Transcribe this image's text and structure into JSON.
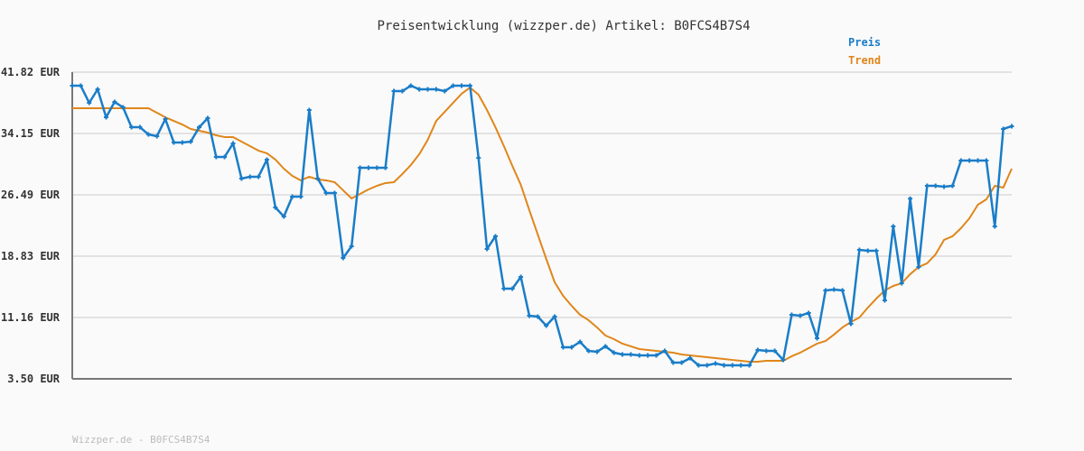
{
  "chart_data": {
    "type": "line",
    "title": "Preisentwicklung (wizzper.de) Artikel: B0FCS4B7S4",
    "ylim": [
      3.5,
      41.82
    ],
    "yticks": [
      "3.50 EUR",
      "11.16 EUR",
      "18.83 EUR",
      "26.49 EUR",
      "34.15 EUR",
      "41.82 EUR"
    ],
    "ytick_values": [
      3.5,
      11.16,
      18.83,
      26.49,
      34.15,
      41.82
    ],
    "grid": true,
    "legend_position": "top-right",
    "series": [
      {
        "name": "Preis",
        "color": "#1a7dc8",
        "markers": true,
        "values": [
          40.13,
          40.13,
          37.99,
          39.68,
          36.18,
          38.1,
          37.42,
          34.94,
          34.94,
          34.04,
          33.82,
          35.96,
          33.03,
          33.03,
          33.14,
          34.94,
          36.07,
          31.23,
          31.23,
          32.92,
          28.52,
          28.75,
          28.75,
          30.89,
          24.91,
          23.79,
          26.27,
          26.27,
          37.09,
          28.52,
          26.72,
          26.72,
          18.6,
          20.07,
          29.87,
          29.87,
          29.87,
          29.87,
          39.45,
          39.45,
          40.13,
          39.68,
          39.68,
          39.68,
          39.45,
          40.13,
          40.13,
          40.13,
          31.11,
          19.73,
          21.31,
          14.77,
          14.77,
          16.24,
          11.39,
          11.28,
          10.15,
          11.28,
          7.45,
          7.45,
          8.12,
          6.99,
          6.88,
          7.56,
          6.77,
          6.54,
          6.54,
          6.43,
          6.43,
          6.43,
          6.99,
          5.53,
          5.53,
          6.09,
          5.19,
          5.19,
          5.42,
          5.19,
          5.19,
          5.19,
          5.19,
          7.11,
          6.99,
          6.99,
          5.86,
          11.5,
          11.39,
          11.73,
          8.57,
          14.54,
          14.66,
          14.54,
          10.38,
          19.62,
          19.5,
          19.5,
          13.3,
          22.55,
          15.45,
          26.01,
          17.48,
          27.62,
          27.62,
          27.51,
          27.62,
          30.77,
          30.77,
          30.77,
          30.77,
          22.55,
          34.72,
          35.06
        ]
      },
      {
        "name": "Trend",
        "color": "#e0861a",
        "markers": false,
        "values": [
          37.31,
          37.31,
          37.31,
          37.31,
          37.31,
          37.31,
          37.31,
          37.31,
          37.31,
          37.31,
          36.75,
          36.18,
          35.73,
          35.28,
          34.72,
          34.49,
          34.27,
          33.93,
          33.71,
          33.71,
          33.14,
          32.58,
          32.01,
          31.68,
          30.89,
          29.76,
          28.86,
          28.3,
          28.75,
          28.41,
          28.3,
          28.07,
          27.06,
          26.04,
          26.61,
          27.17,
          27.62,
          27.96,
          28.07,
          29.09,
          30.21,
          31.57,
          33.37,
          35.73,
          36.86,
          37.99,
          39.12,
          39.9,
          39.0,
          37.09,
          34.94,
          32.58,
          30.1,
          27.73,
          24.58,
          21.53,
          18.49,
          15.56,
          13.87,
          12.63,
          11.5,
          10.83,
          9.93,
          8.91,
          8.46,
          7.9,
          7.56,
          7.22,
          7.11,
          6.99,
          6.88,
          6.77,
          6.54,
          6.43,
          6.32,
          6.21,
          6.09,
          5.98,
          5.86,
          5.75,
          5.64,
          5.64,
          5.75,
          5.75,
          5.75,
          6.32,
          6.77,
          7.33,
          7.9,
          8.23,
          9.03,
          9.93,
          10.6,
          11.16,
          12.4,
          13.53,
          14.54,
          15.11,
          15.45,
          16.58,
          17.48,
          17.93,
          19.05,
          20.86,
          21.31,
          22.32,
          23.56,
          25.25,
          25.93,
          27.62,
          27.39,
          29.76
        ]
      }
    ]
  },
  "footer": "Wizzper.de - B0FCS4B7S4"
}
